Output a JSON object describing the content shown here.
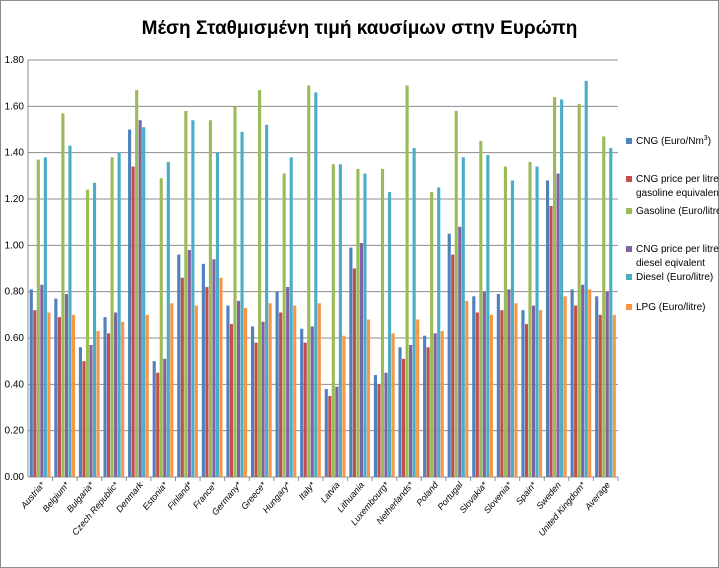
{
  "chart_data": {
    "type": "bar",
    "title": "Μέση Σταθμισμένη τιμή καυσίμων στην Ευρώπη",
    "xlabel": "",
    "ylabel": "",
    "ylim": [
      0,
      1.8
    ],
    "yticks": [
      "0.00",
      "0.20",
      "0.40",
      "0.60",
      "0.80",
      "1.00",
      "1.20",
      "1.40",
      "1.60",
      "1.80"
    ],
    "grid": "horizontal",
    "legend_position": "right",
    "categories": [
      "Austria*",
      "Belgium*",
      "Bulgaria*",
      "Czech Republic*",
      "Denmark",
      "Estonia*",
      "Finland*",
      "France*",
      "Germany*",
      "Greece*",
      "Hungary*",
      "Italy*",
      "Latvia",
      "Lithuania",
      "Luxembourg*",
      "Netherlands*",
      "Poland",
      "Portugal",
      "Slovakia*",
      "Slovenia*",
      "Spain*",
      "Sweden",
      "United Kingdom*",
      "Average"
    ],
    "series": [
      {
        "name": "CNG (Euro/Nm³)",
        "label_main": "CNG (Euro/Nm",
        "label_sup": "3",
        "label_end": ")",
        "color": "#4f81bd",
        "values": [
          0.81,
          0.77,
          0.56,
          0.69,
          1.5,
          0.5,
          0.96,
          0.92,
          0.74,
          0.65,
          0.8,
          0.64,
          0.38,
          0.99,
          0.44,
          0.56,
          0.61,
          1.05,
          0.78,
          0.79,
          0.72,
          1.28,
          0.81,
          0.78
        ]
      },
      {
        "name": "CNG price per litre gasoline equivalent",
        "line1": "CNG price per litre",
        "line2": "gasoline equivalent",
        "color": "#c0504d",
        "values": [
          0.72,
          0.69,
          0.5,
          0.62,
          1.34,
          0.45,
          0.86,
          0.82,
          0.66,
          0.58,
          0.71,
          0.58,
          0.35,
          0.9,
          0.4,
          0.51,
          0.56,
          0.96,
          0.71,
          0.72,
          0.66,
          1.17,
          0.74,
          0.7
        ]
      },
      {
        "name": "Gasoline (Euro/litre)",
        "color": "#9bbb59",
        "values": [
          1.37,
          1.57,
          1.24,
          1.38,
          1.67,
          1.29,
          1.58,
          1.54,
          1.6,
          1.67,
          1.31,
          1.69,
          1.35,
          1.33,
          1.33,
          1.69,
          1.23,
          1.58,
          1.45,
          1.34,
          1.36,
          1.64,
          1.61,
          1.47
        ]
      },
      {
        "name": "CNG price per litre diesel eqivalent",
        "line1": "CNG price per litre",
        "line2": "diesel eqivalent",
        "color": "#8064a2",
        "values": [
          0.83,
          0.79,
          0.57,
          0.71,
          1.54,
          0.51,
          0.98,
          0.94,
          0.76,
          0.67,
          0.82,
          0.65,
          0.39,
          1.01,
          0.45,
          0.57,
          0.62,
          1.08,
          0.8,
          0.81,
          0.74,
          1.31,
          0.83,
          0.8
        ]
      },
      {
        "name": "Diesel (Euro/litre)",
        "color": "#4bacc6",
        "values": [
          1.38,
          1.43,
          1.27,
          1.4,
          1.51,
          1.36,
          1.54,
          1.4,
          1.49,
          1.52,
          1.38,
          1.66,
          1.35,
          1.31,
          1.23,
          1.42,
          1.25,
          1.38,
          1.39,
          1.28,
          1.34,
          1.63,
          1.71,
          1.42
        ]
      },
      {
        "name": "LPG (Euro/litre)",
        "color": "#f79646",
        "values": [
          0.71,
          0.7,
          0.63,
          0.67,
          0.7,
          0.75,
          0.74,
          0.86,
          0.73,
          0.75,
          0.74,
          0.75,
          0.61,
          0.68,
          0.62,
          0.68,
          0.63,
          0.76,
          0.7,
          0.75,
          0.72,
          0.78,
          0.81,
          0.7
        ]
      }
    ]
  }
}
